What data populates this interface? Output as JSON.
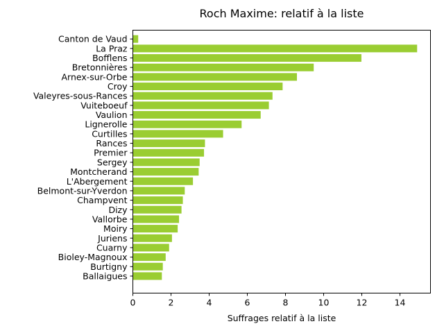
{
  "chart_data": {
    "type": "bar",
    "orientation": "horizontal",
    "title": "Roch Maxime: relatif à la liste",
    "xlabel": "Suffrages relatif à la liste",
    "ylabel": "",
    "xlim": [
      0,
      15.6
    ],
    "xticks": [
      0,
      2,
      4,
      6,
      8,
      10,
      12,
      14
    ],
    "bar_color": "#9acd32",
    "grid": false,
    "legend": "none",
    "categories": [
      "Canton de Vaud",
      "La Praz",
      "Bofflens",
      "Bretonnières",
      "Arnex-sur-Orbe",
      "Croy",
      "Valeyres-sous-Rances",
      "Vuiteboeuf",
      "Vaulion",
      "Lignerolle",
      "Curtilles",
      "Rances",
      "Premier",
      "Sergey",
      "Montcherand",
      "L'Abergement",
      "Belmont-sur-Yverdon",
      "Champvent",
      "Dizy",
      "Vallorbe",
      "Moiry",
      "Juriens",
      "Cuarny",
      "Bioley-Magnoux",
      "Burtigny",
      "Ballaigues"
    ],
    "values": [
      0.28,
      14.9,
      11.98,
      9.48,
      8.6,
      7.85,
      7.32,
      7.13,
      6.7,
      5.7,
      4.73,
      3.78,
      3.73,
      3.5,
      3.45,
      3.15,
      2.72,
      2.62,
      2.55,
      2.42,
      2.35,
      2.05,
      1.9,
      1.72,
      1.57,
      1.52
    ]
  }
}
